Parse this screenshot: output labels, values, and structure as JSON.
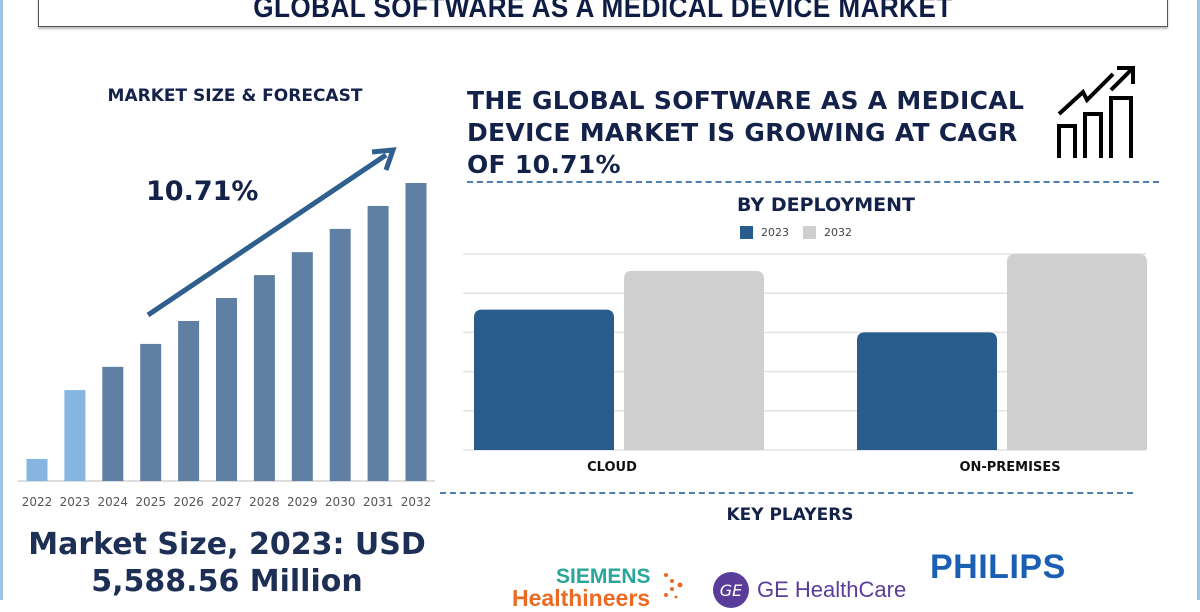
{
  "title": "GLOBAL SOFTWARE AS A MEDICAL DEVICE MARKET",
  "left_panel": {
    "heading": "MARKET SIZE & FORECAST",
    "cagr_label": "10.71%",
    "market_size_line1": "Market Size, 2023: USD",
    "market_size_line2": "5,588.56 Million"
  },
  "headline": "THE GLOBAL SOFTWARE AS A MEDICAL DEVICE MARKET IS GROWING AT CAGR OF 10.71%",
  "icons": {
    "growth": "bar-chart-growth-arrow-icon"
  },
  "deployment": {
    "heading": "BY DEPLOYMENT",
    "categories": [
      "CLOUD",
      "ON-PREMISES"
    ]
  },
  "key_players": {
    "heading": "KEY PLAYERS",
    "logos": [
      "SIEMENS Healthineers",
      "GE HealthCare",
      "PHILIPS"
    ]
  },
  "colors": {
    "navy": "#14224a",
    "bar_dark": "#5f7fa3",
    "bar_light": "#85b5e0",
    "series_2023": "#285c8c",
    "series_2032": "#cfcfcf",
    "dash": "#4f7fae"
  },
  "chart_data": [
    {
      "type": "bar",
      "title": "MARKET SIZE & FORECAST",
      "categories": [
        "2022",
        "2023",
        "2024",
        "2025",
        "2026",
        "2027",
        "2028",
        "2029",
        "2030",
        "2031",
        "2032"
      ],
      "values": [
        7.4,
        30.5,
        38.3,
        46.0,
        53.7,
        61.4,
        69.1,
        76.8,
        84.6,
        92.3,
        100
      ],
      "highlighted_categories": [
        "2022",
        "2023"
      ],
      "annotation": "10.71%",
      "xlabel": "",
      "ylabel": "",
      "grid": false
    },
    {
      "type": "bar",
      "title": "BY DEPLOYMENT",
      "categories": [
        "CLOUD",
        "ON-PREMISES"
      ],
      "series": [
        {
          "name": "2023",
          "values": [
            3.58,
            3.0
          ]
        },
        {
          "name": "2032",
          "values": [
            4.57,
            5.0
          ]
        }
      ],
      "ylim": [
        0,
        5
      ],
      "legend": "top",
      "grid": true
    }
  ]
}
